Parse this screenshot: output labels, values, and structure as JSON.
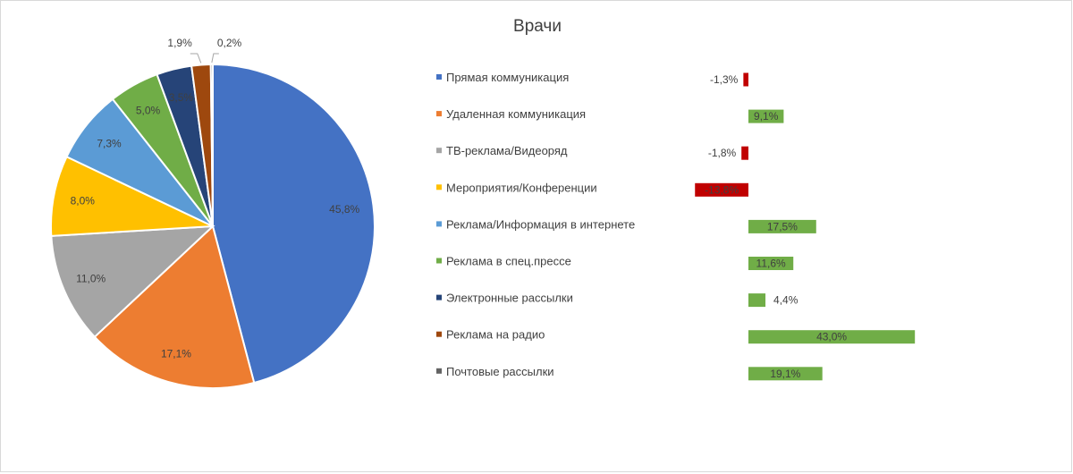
{
  "chart_data": [
    {
      "type": "pie",
      "title": "Врачи",
      "categories": [
        "Прямая коммуникация",
        "Удаленная коммуникация",
        "ТВ-реклама/Видеоряд",
        "Мероприятия/Конференции",
        "Реклама/Информация в интернете",
        "Реклама в спец.прессе",
        "Электронные рассылки",
        "Реклама на радио",
        "Почтовые рассылки"
      ],
      "values": [
        45.8,
        17.1,
        11.0,
        8.0,
        7.3,
        5.0,
        3.5,
        1.9,
        0.2
      ],
      "labels": [
        "45,8%",
        "17,1%",
        "11,0%",
        "8,0%",
        "7,3%",
        "5,0%",
        "3,5%",
        "1,9%",
        "0,2%"
      ],
      "colors": [
        "#4472c4",
        "#ed7d31",
        "#a5a5a5",
        "#ffc000",
        "#5b9bd5",
        "#70ad47",
        "#264478",
        "#9e480e",
        "#636363"
      ],
      "legend": "right"
    },
    {
      "type": "bar",
      "orientation": "horizontal",
      "categories": [
        "Прямая коммуникация",
        "Удаленная коммуникация",
        "ТВ-реклама/Видеоряд",
        "Мероприятия/Конференции",
        "Реклама/Информация в интернете",
        "Реклама в спец.прессе",
        "Электронные рассылки",
        "Реклама на радио",
        "Почтовые рассылки"
      ],
      "values": [
        -1.3,
        9.1,
        -1.8,
        -13.8,
        17.5,
        11.6,
        4.4,
        43.0,
        19.1
      ],
      "labels": [
        "-1,3%",
        "9,1%",
        "-1,8%",
        "-13,8%",
        "17,5%",
        "11,6%",
        "4,4%",
        "43,0%",
        "19,1%"
      ],
      "positive_color": "#70ad47",
      "negative_color": "#c00000"
    }
  ]
}
